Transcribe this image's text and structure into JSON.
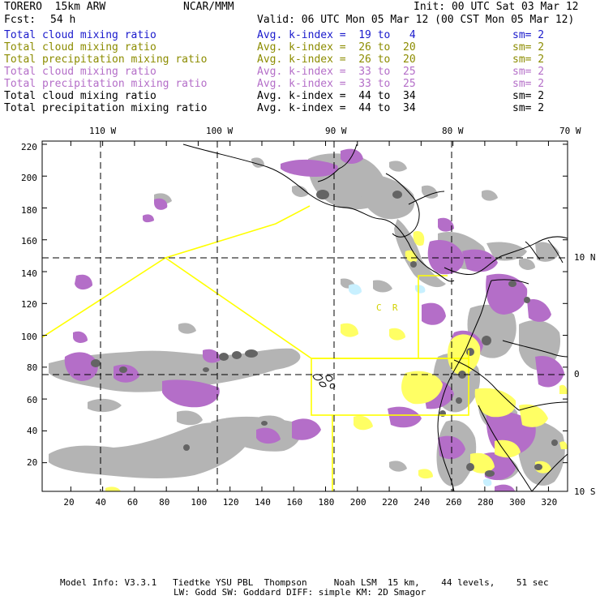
{
  "header": {
    "model": "TORERO  15km ARW",
    "center": "NCAR/MMM",
    "init": "Init: 00 UTC Sat 03 Mar 12",
    "fcst_label": "Fcst:",
    "fcst_value": "54 h",
    "valid": "Valid: 06 UTC Mon 05 Mar 12 (00 CST Mon 05 Mar 12)"
  },
  "legend": [
    {
      "field": "Total cloud mixing ratio",
      "kindex": "Avg. k-index =  19 to   4",
      "sm": "sm= 2",
      "color": "#1a1acc"
    },
    {
      "field": "Total cloud mixing ratio",
      "kindex": "Avg. k-index =  26 to  20",
      "sm": "sm= 2",
      "color": "#8c8c00"
    },
    {
      "field": "Total precipitation mixing ratio",
      "kindex": "Avg. k-index =  26 to  20",
      "sm": "sm= 2",
      "color": "#8c8c00"
    },
    {
      "field": "Total cloud mixing ratio",
      "kindex": "Avg. k-index =  33 to  25",
      "sm": "sm= 2",
      "color": "#b46ec8"
    },
    {
      "field": "Total precipitation mixing ratio",
      "kindex": "Avg. k-index =  33 to  25",
      "sm": "sm= 2",
      "color": "#b46ec8"
    },
    {
      "field": "Total cloud mixing ratio",
      "kindex": "Avg. k-index =  44 to  34",
      "sm": "sm= 2",
      "color": "#000000"
    },
    {
      "field": "Total precipitation mixing ratio",
      "kindex": "Avg. k-index =  44 to  34",
      "sm": "sm= 2",
      "color": "#000000"
    }
  ],
  "map": {
    "longitude_labels": [
      "110 W",
      "100 W",
      "90 W",
      "80 W",
      "70 W"
    ],
    "latitude_labels": [
      "10 N",
      "0",
      "10 S"
    ],
    "x_ticks": [
      "20",
      "40",
      "60",
      "80",
      "100",
      "120",
      "140",
      "160",
      "180",
      "200",
      "220",
      "240",
      "260",
      "280",
      "300",
      "320"
    ],
    "y_ticks": [
      "220",
      "200",
      "180",
      "160",
      "140",
      "120",
      "100",
      "80",
      "60",
      "40",
      "20"
    ],
    "annotation": "C  R",
    "colors": {
      "grey": "#b4b4b4",
      "dark": "#646464",
      "purple": "#b46ec8",
      "yellow": "#ffff64",
      "cyan": "#c8f0ff",
      "outline": "#ffff00"
    }
  },
  "footer": {
    "line1": "Model Info: V3.3.1   Tiedtke YSU PBL  Thompson     Noah LSM  15 km,    44 levels,    51 sec",
    "line2": "LW: Godd SW: Goddard DIFF: simple KM: 2D Smagor"
  }
}
